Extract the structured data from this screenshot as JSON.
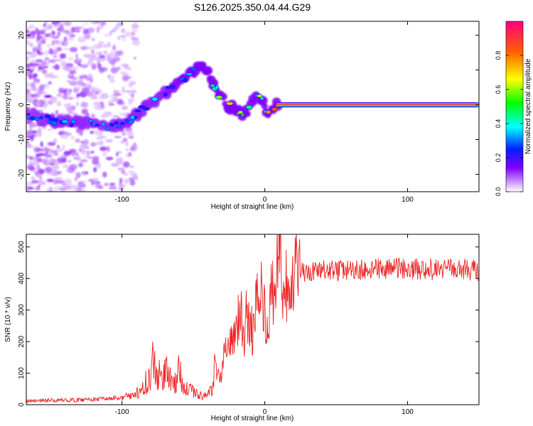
{
  "title": "S126.2025.350.04.44.G29",
  "chart_data": [
    {
      "type": "heatmap",
      "name": "spectrogram",
      "xlabel": "Height of straight line (km)",
      "ylabel": "Frequency (Hz)",
      "xlim": [
        -167,
        150
      ],
      "ylim": [
        -25,
        24
      ],
      "xticks": [
        -100,
        0,
        100
      ],
      "xtick_labels": [
        "-100",
        "0",
        "100"
      ],
      "yticks": [
        -20,
        -10,
        0,
        10,
        20
      ],
      "ytick_labels": [
        "-20",
        "-10",
        "0",
        "10",
        "20"
      ],
      "colorbar": {
        "label": "Normalized spectral amplitude",
        "range": [
          0,
          1
        ],
        "ticks": [
          0.0,
          0.2,
          0.4,
          0.6,
          0.8
        ],
        "tick_labels": [
          "0.0",
          "0.2",
          "0.4",
          "0.6",
          "0.8"
        ],
        "colors": [
          "#ffffff",
          "#c890ff",
          "#8000ff",
          "#0020ff",
          "#00ffff",
          "#00ff00",
          "#ffff00",
          "#ff6000",
          "#ff0080"
        ]
      },
      "ridge": {
        "x": [
          -167,
          -150,
          -130,
          -115,
          -100,
          -92,
          -85,
          -75,
          -65,
          -55,
          -48,
          -44,
          -40,
          -36,
          -32,
          -26,
          -20,
          -16,
          -12,
          -8,
          -5,
          -2,
          0,
          3,
          6,
          10,
          20,
          40,
          60,
          80,
          100,
          120,
          150
        ],
        "y": [
          -3,
          -4.5,
          -5,
          -6,
          -6,
          -4,
          -1,
          2,
          5,
          8,
          10,
          10.5,
          9,
          6,
          3,
          0,
          -1.5,
          -2.5,
          -1.5,
          1.5,
          3,
          1,
          -1.5,
          -2,
          -0.5,
          0,
          0,
          0,
          0,
          0,
          0,
          0,
          0
        ],
        "amplitude": [
          0.25,
          0.3,
          0.3,
          0.28,
          0.3,
          0.3,
          0.3,
          0.3,
          0.32,
          0.35,
          0.38,
          0.4,
          0.45,
          0.5,
          0.55,
          0.6,
          0.62,
          0.65,
          0.6,
          0.55,
          0.5,
          0.55,
          0.6,
          0.7,
          0.8,
          0.9,
          0.95,
          0.97,
          0.98,
          0.98,
          0.98,
          0.98,
          0.98
        ]
      },
      "noise_region_x": [
        -167,
        -100
      ]
    },
    {
      "type": "line",
      "name": "snr",
      "xlabel": "Height of straight line (km)",
      "ylabel": "SNR (10 * v/v)",
      "xlim": [
        -167,
        150
      ],
      "ylim": [
        0,
        540
      ],
      "xticks": [
        -100,
        0,
        100
      ],
      "xtick_labels": [
        "-100",
        "0",
        "100"
      ],
      "yticks": [
        0,
        100,
        200,
        300,
        400,
        500
      ],
      "ytick_labels": [
        "0",
        "100",
        "200",
        "300",
        "400",
        "500"
      ],
      "color": "#ee2222",
      "series": [
        {
          "name": "SNR",
          "x": [
            -167,
            -150,
            -130,
            -110,
            -100,
            -90,
            -85,
            -80,
            -78,
            -75,
            -72,
            -70,
            -65,
            -62,
            -60,
            -57,
            -55,
            -50,
            -45,
            -40,
            -37,
            -35,
            -32,
            -30,
            -28,
            -25,
            -22,
            -20,
            -18,
            -16,
            -15,
            -13,
            -10,
            -8,
            -5,
            -3,
            0,
            3,
            5,
            8,
            10,
            11,
            12,
            15,
            18,
            20,
            23,
            25,
            30,
            40,
            60,
            80,
            100,
            120,
            140,
            150
          ],
          "y": [
            12,
            14,
            15,
            18,
            22,
            35,
            60,
            90,
            145,
            100,
            80,
            110,
            70,
            65,
            125,
            70,
            50,
            40,
            30,
            25,
            55,
            120,
            95,
            100,
            180,
            170,
            230,
            210,
            320,
            250,
            210,
            270,
            235,
            240,
            330,
            380,
            300,
            270,
            350,
            370,
            540,
            430,
            300,
            370,
            320,
            390,
            415,
            420,
            415,
            425,
            425,
            430,
            432,
            428,
            430,
            425
          ]
        }
      ]
    }
  ]
}
